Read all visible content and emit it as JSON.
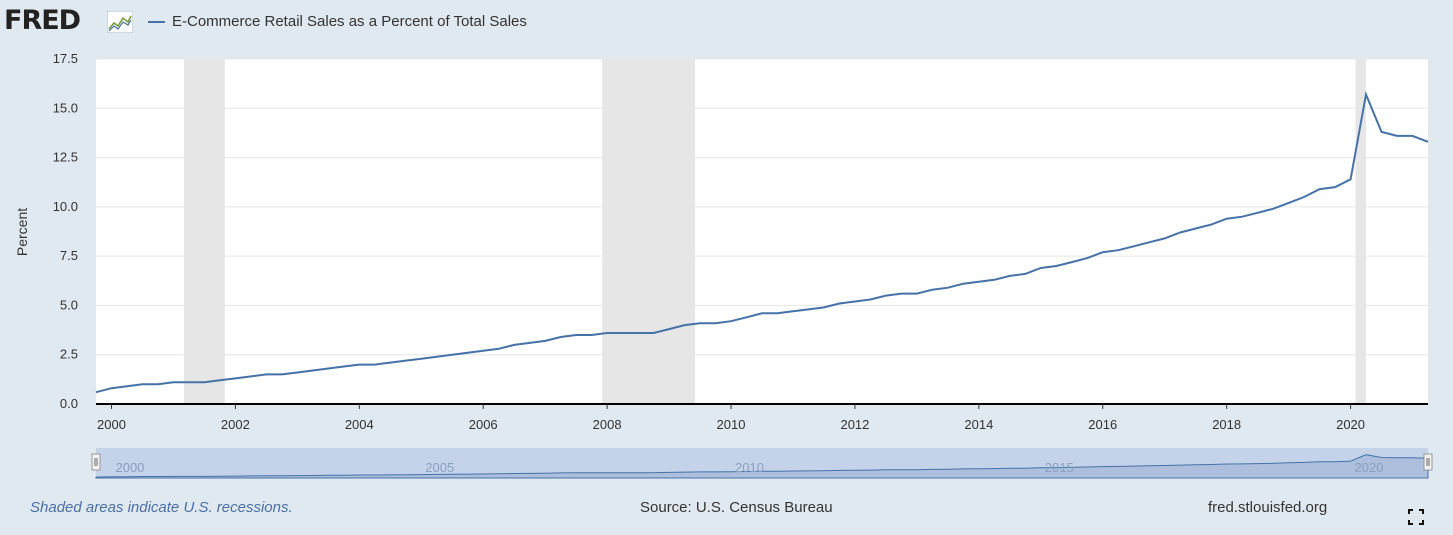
{
  "header": {
    "logo_text": "FRED",
    "legend_label": "E-Commerce Retail Sales as a Percent of Total Sales"
  },
  "footer": {
    "recession_note": "Shaded areas indicate U.S. recessions.",
    "source": "Source: U.S. Census Bureau",
    "site": "fred.stlouisfed.org"
  },
  "colors": {
    "line": "#4572a7",
    "recession": "#e6e6e6",
    "page_bg": "#e1e9f0",
    "plot_bg": "#ffffff",
    "navigator_fill": "#c5d3ea"
  },
  "icons": [
    "fred-chart-icon",
    "fullscreen-icon",
    "navigator-handle-icon"
  ],
  "chart_data": {
    "type": "line",
    "title": "",
    "xlabel": "",
    "ylabel": "Percent",
    "xlim": [
      1999.75,
      2021.25
    ],
    "ylim": [
      0,
      17.5
    ],
    "grid": true,
    "yticks": [
      "0.0",
      "2.5",
      "5.0",
      "7.5",
      "10.0",
      "12.5",
      "15.0",
      "17.5"
    ],
    "xticks": [
      "2000",
      "2002",
      "2004",
      "2006",
      "2008",
      "2010",
      "2012",
      "2014",
      "2016",
      "2018",
      "2020"
    ],
    "navigator_ticks": [
      "2000",
      "2005",
      "2010",
      "2015",
      "2020"
    ],
    "recessions": [
      [
        2001.17,
        2001.83
      ],
      [
        2007.92,
        2009.42
      ],
      [
        2020.08,
        2020.25
      ]
    ],
    "series": [
      {
        "name": "E-Commerce Retail Sales as a Percent of Total Sales",
        "x": [
          1999.75,
          2000.0,
          2000.25,
          2000.5,
          2000.75,
          2001.0,
          2001.25,
          2001.5,
          2001.75,
          2002.0,
          2002.25,
          2002.5,
          2002.75,
          2003.0,
          2003.25,
          2003.5,
          2003.75,
          2004.0,
          2004.25,
          2004.5,
          2004.75,
          2005.0,
          2005.25,
          2005.5,
          2005.75,
          2006.0,
          2006.25,
          2006.5,
          2006.75,
          2007.0,
          2007.25,
          2007.5,
          2007.75,
          2008.0,
          2008.25,
          2008.5,
          2008.75,
          2009.0,
          2009.25,
          2009.5,
          2009.75,
          2010.0,
          2010.25,
          2010.5,
          2010.75,
          2011.0,
          2011.25,
          2011.5,
          2011.75,
          2012.0,
          2012.25,
          2012.5,
          2012.75,
          2013.0,
          2013.25,
          2013.5,
          2013.75,
          2014.0,
          2014.25,
          2014.5,
          2014.75,
          2015.0,
          2015.25,
          2015.5,
          2015.75,
          2016.0,
          2016.25,
          2016.5,
          2016.75,
          2017.0,
          2017.25,
          2017.5,
          2017.75,
          2018.0,
          2018.25,
          2018.5,
          2018.75,
          2019.0,
          2019.25,
          2019.5,
          2019.75,
          2020.0,
          2020.25,
          2020.5,
          2020.75,
          2021.0,
          2021.25
        ],
        "values": [
          0.6,
          0.8,
          0.9,
          1.0,
          1.0,
          1.1,
          1.1,
          1.1,
          1.2,
          1.3,
          1.4,
          1.5,
          1.5,
          1.6,
          1.7,
          1.8,
          1.9,
          2.0,
          2.0,
          2.1,
          2.2,
          2.3,
          2.4,
          2.5,
          2.6,
          2.7,
          2.8,
          3.0,
          3.1,
          3.2,
          3.4,
          3.5,
          3.5,
          3.6,
          3.6,
          3.6,
          3.6,
          3.8,
          4.0,
          4.1,
          4.1,
          4.2,
          4.4,
          4.6,
          4.6,
          4.7,
          4.8,
          4.9,
          5.1,
          5.2,
          5.3,
          5.5,
          5.6,
          5.6,
          5.8,
          5.9,
          6.1,
          6.2,
          6.3,
          6.5,
          6.6,
          6.9,
          7.0,
          7.2,
          7.4,
          7.7,
          7.8,
          8.0,
          8.2,
          8.4,
          8.7,
          8.9,
          9.1,
          9.4,
          9.5,
          9.7,
          9.9,
          10.2,
          10.5,
          10.9,
          11.0,
          11.4,
          15.7,
          13.8,
          13.6,
          13.6,
          13.3
        ]
      }
    ]
  }
}
